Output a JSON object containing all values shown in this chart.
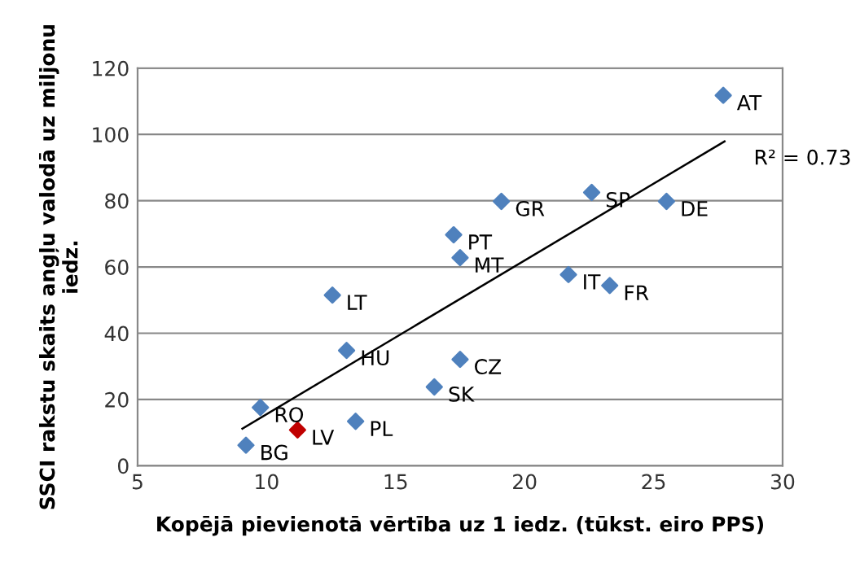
{
  "chart_data": {
    "type": "scatter",
    "xlabel": "Kopējā pievienotā vērtība uz 1 iedz. (tūkst. eiro PPS)",
    "ylabel": "SSCI rakstu skaits angļu valodā uz miljonu iedz.",
    "xlim": [
      5,
      30
    ],
    "xticks": [
      5,
      10,
      15,
      20,
      25,
      30
    ],
    "ylim": [
      0,
      120
    ],
    "yticks": [
      0,
      20,
      40,
      60,
      80,
      100,
      120
    ],
    "grid": "y",
    "legend": false,
    "marker": "diamond",
    "series": [
      {
        "x": [
          27.7,
          22.6,
          25.5,
          19.1,
          17.25,
          17.5,
          21.7,
          23.3,
          17.5,
          16.5,
          12.55,
          13.1,
          9.76,
          11.2,
          13.45,
          9.2
        ],
        "values": [
          111.8,
          82.5,
          79.8,
          79.8,
          69.7,
          62.8,
          57.7,
          54.4,
          32.1,
          23.8,
          51.5,
          34.8,
          17.6,
          10.8,
          13.4,
          6.2
        ],
        "colors": [
          "#4f81bd",
          "#4f81bd",
          "#4f81bd",
          "#4f81bd",
          "#4f81bd",
          "#4f81bd",
          "#4f81bd",
          "#4f81bd",
          "#4f81bd",
          "#4f81bd",
          "#4f81bd",
          "#4f81bd",
          "#4f81bd",
          "#c00000",
          "#4f81bd",
          "#4f81bd"
        ]
      },
      {
        "type": "line",
        "x": [
          9.06,
          27.75
        ],
        "values": [
          11.2,
          97.9
        ],
        "color": "#000000",
        "marker": "none",
        "line_style": "solid"
      }
    ],
    "annotations": [
      {
        "text": "AT",
        "x": 27.7,
        "y": 111.8
      },
      {
        "text": "SP",
        "x": 22.6,
        "y": 82.5
      },
      {
        "text": "DE",
        "x": 25.5,
        "y": 79.8
      },
      {
        "text": "GR",
        "x": 19.1,
        "y": 79.8
      },
      {
        "text": "PT",
        "x": 17.25,
        "y": 69.7
      },
      {
        "text": "MT",
        "x": 17.5,
        "y": 62.8
      },
      {
        "text": "IT",
        "x": 21.7,
        "y": 57.7
      },
      {
        "text": "FR",
        "x": 23.3,
        "y": 54.4
      },
      {
        "text": "CZ",
        "x": 17.5,
        "y": 32.1
      },
      {
        "text": "SK",
        "x": 16.5,
        "y": 23.8
      },
      {
        "text": "LT",
        "x": 12.55,
        "y": 51.5
      },
      {
        "text": "HU",
        "x": 13.1,
        "y": 34.8
      },
      {
        "text": "RO",
        "x": 9.76,
        "y": 17.6
      },
      {
        "text": "LV",
        "x": 11.2,
        "y": 10.8
      },
      {
        "text": "PL",
        "x": 13.45,
        "y": 13.4
      },
      {
        "text": "BG",
        "x": 9.2,
        "y": 6.2
      },
      "R² = 0.73"
    ]
  }
}
